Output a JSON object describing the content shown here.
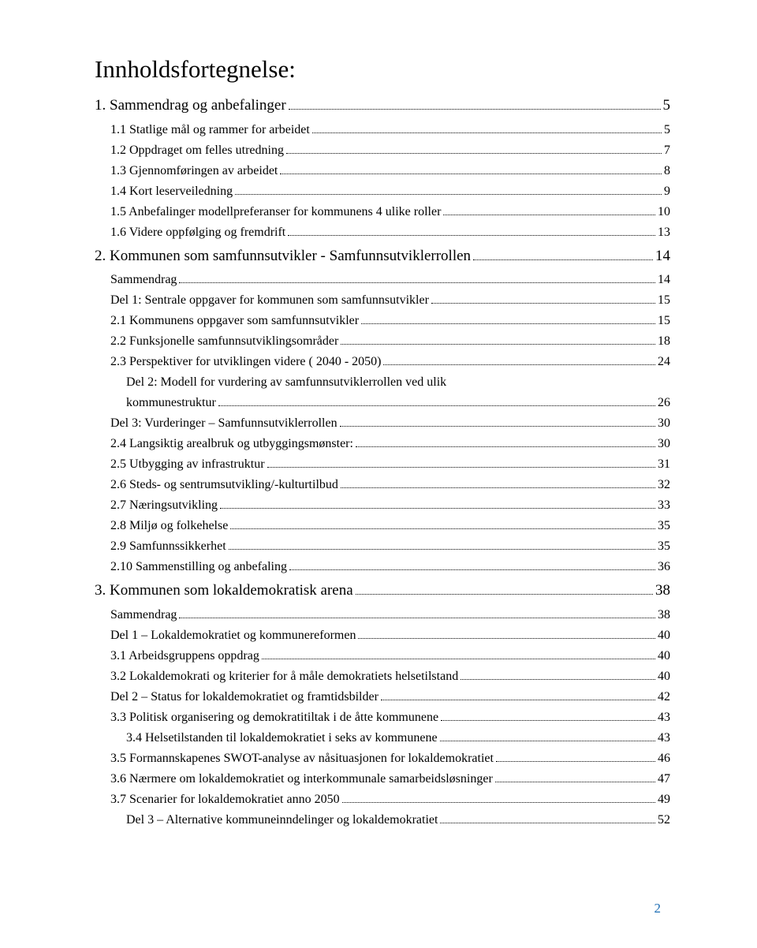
{
  "title": "Innholdsfortegnelse:",
  "pageNumber": "2",
  "colors": {
    "text": "#000000",
    "pageNumber": "#1f6fb5",
    "background": "#ffffff"
  },
  "entries": [
    {
      "level": 1,
      "label": "1. Sammendrag og anbefalinger",
      "page": "5"
    },
    {
      "level": 2,
      "label": "1.1 Statlige mål og rammer for arbeidet",
      "page": "5"
    },
    {
      "level": 2,
      "label": "1.2 Oppdraget om felles utredning",
      "page": "7"
    },
    {
      "level": 2,
      "label": "1.3 Gjennomføringen av arbeidet",
      "page": "8"
    },
    {
      "level": 2,
      "label": "1.4 Kort leserveiledning",
      "page": "9"
    },
    {
      "level": 2,
      "label": "1.5 Anbefalinger modellpreferanser for kommunens 4 ulike roller",
      "page": "10"
    },
    {
      "level": 2,
      "label": "1.6 Videre oppfølging og fremdrift",
      "page": "13"
    },
    {
      "level": 1,
      "label": "2. Kommunen som samfunnsutvikler - Samfunnsutviklerrollen",
      "page": "14"
    },
    {
      "level": 2,
      "label": "Sammendrag",
      "page": "14"
    },
    {
      "level": 2,
      "label": "Del 1: Sentrale oppgaver for kommunen som samfunnsutvikler",
      "page": "15"
    },
    {
      "level": 2,
      "label": "2.1 Kommunens oppgaver som samfunnsutvikler",
      "page": "15"
    },
    {
      "level": 2,
      "label": "2.2 Funksjonelle samfunnsutviklingsområder",
      "page": "18"
    },
    {
      "level": 2,
      "label": "2.3 Perspektiver for utviklingen videre ( 2040 - 2050)",
      "page": "24"
    },
    {
      "level": 3,
      "label": "Del 2: Modell for vurdering av samfunnsutviklerrollen ved ulik kommunestruktur",
      "page": "26",
      "wrap": true
    },
    {
      "level": 2,
      "label": "Del 3:  Vurderinger – Samfunnsutviklerrollen",
      "page": "30"
    },
    {
      "level": 2,
      "label": "2.4 Langsiktig arealbruk og utbyggingsmønster:",
      "page": "30"
    },
    {
      "level": 2,
      "label": "2.5 Utbygging av infrastruktur",
      "page": "31"
    },
    {
      "level": 2,
      "label": "2.6 Steds- og sentrumsutvikling/-kulturtilbud",
      "page": "32"
    },
    {
      "level": 2,
      "label": "2.7 Næringsutvikling",
      "page": "33"
    },
    {
      "level": 2,
      "label": "2.8 Miljø og folkehelse",
      "page": "35"
    },
    {
      "level": 2,
      "label": "2.9 Samfunnssikkerhet",
      "page": "35"
    },
    {
      "level": 2,
      "label": "2.10 Sammenstilling og anbefaling",
      "page": "36"
    },
    {
      "level": 1,
      "label": "3. Kommunen som lokaldemokratisk arena",
      "page": "38"
    },
    {
      "level": 2,
      "label": "Sammendrag",
      "page": "38"
    },
    {
      "level": 2,
      "label": "Del 1 – Lokaldemokratiet og kommunereformen",
      "page": "40"
    },
    {
      "level": 2,
      "label": "3.1    Arbeidsgruppens oppdrag",
      "page": "40"
    },
    {
      "level": 2,
      "label": "3.2 Lokaldemokrati og kriterier for å måle demokratiets helsetilstand",
      "page": "40"
    },
    {
      "level": 2,
      "label": "Del 2 – Status for lokaldemokratiet og framtidsbilder",
      "page": "42"
    },
    {
      "level": 2,
      "label": "3.3 Politisk organisering og demokratitiltak i de åtte kommunene",
      "page": "43"
    },
    {
      "level": 3,
      "label": "3.4 Helsetilstanden til lokaldemokratiet i seks av kommunene",
      "page": "43"
    },
    {
      "level": 2,
      "label": "3.5 Formannskapenes SWOT-analyse av nåsituasjonen for lokaldemokratiet",
      "page": "46"
    },
    {
      "level": 2,
      "label": "3.6 Nærmere om lokaldemokratiet og interkommunale samarbeidsløsninger",
      "page": "47"
    },
    {
      "level": 2,
      "label": "3.7 Scenarier for lokaldemokratiet anno 2050",
      "page": "49"
    },
    {
      "level": 3,
      "label": "Del 3 – Alternative kommuneinndelinger og lokaldemokratiet",
      "page": "52"
    }
  ]
}
